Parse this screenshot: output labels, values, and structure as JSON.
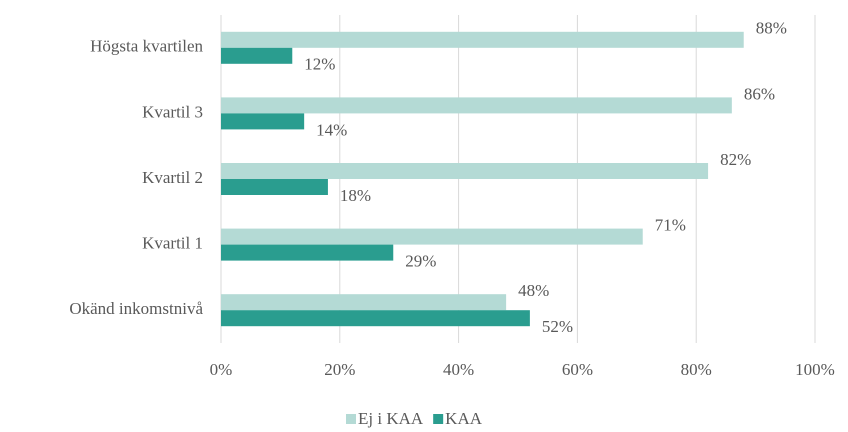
{
  "chart_data": {
    "type": "barh",
    "categories": [
      "Högsta kvartilen",
      "Kvartil 3",
      "Kvartil 2",
      "Kvartil 1",
      "Okänd inkomstnivå"
    ],
    "series": [
      {
        "name": "Ej i KAA",
        "color": "#b4dad5",
        "values": [
          88,
          86,
          82,
          71,
          48
        ],
        "value_labels": [
          "88%",
          "86%",
          "82%",
          "71%",
          "48%"
        ]
      },
      {
        "name": "KAA",
        "color": "#2a9d8f",
        "values": [
          12,
          14,
          18,
          29,
          52
        ],
        "value_labels": [
          "12%",
          "14%",
          "18%",
          "29%",
          "52%"
        ]
      }
    ],
    "xlim": [
      0,
      100
    ],
    "xticks": [
      {
        "value": 0,
        "label": "0%"
      },
      {
        "value": 20,
        "label": "20%"
      },
      {
        "value": 40,
        "label": "40%"
      },
      {
        "value": 60,
        "label": "60%"
      },
      {
        "value": 80,
        "label": "80%"
      },
      {
        "value": 100,
        "label": "100%"
      }
    ],
    "grid": true,
    "legend": "bottom"
  }
}
